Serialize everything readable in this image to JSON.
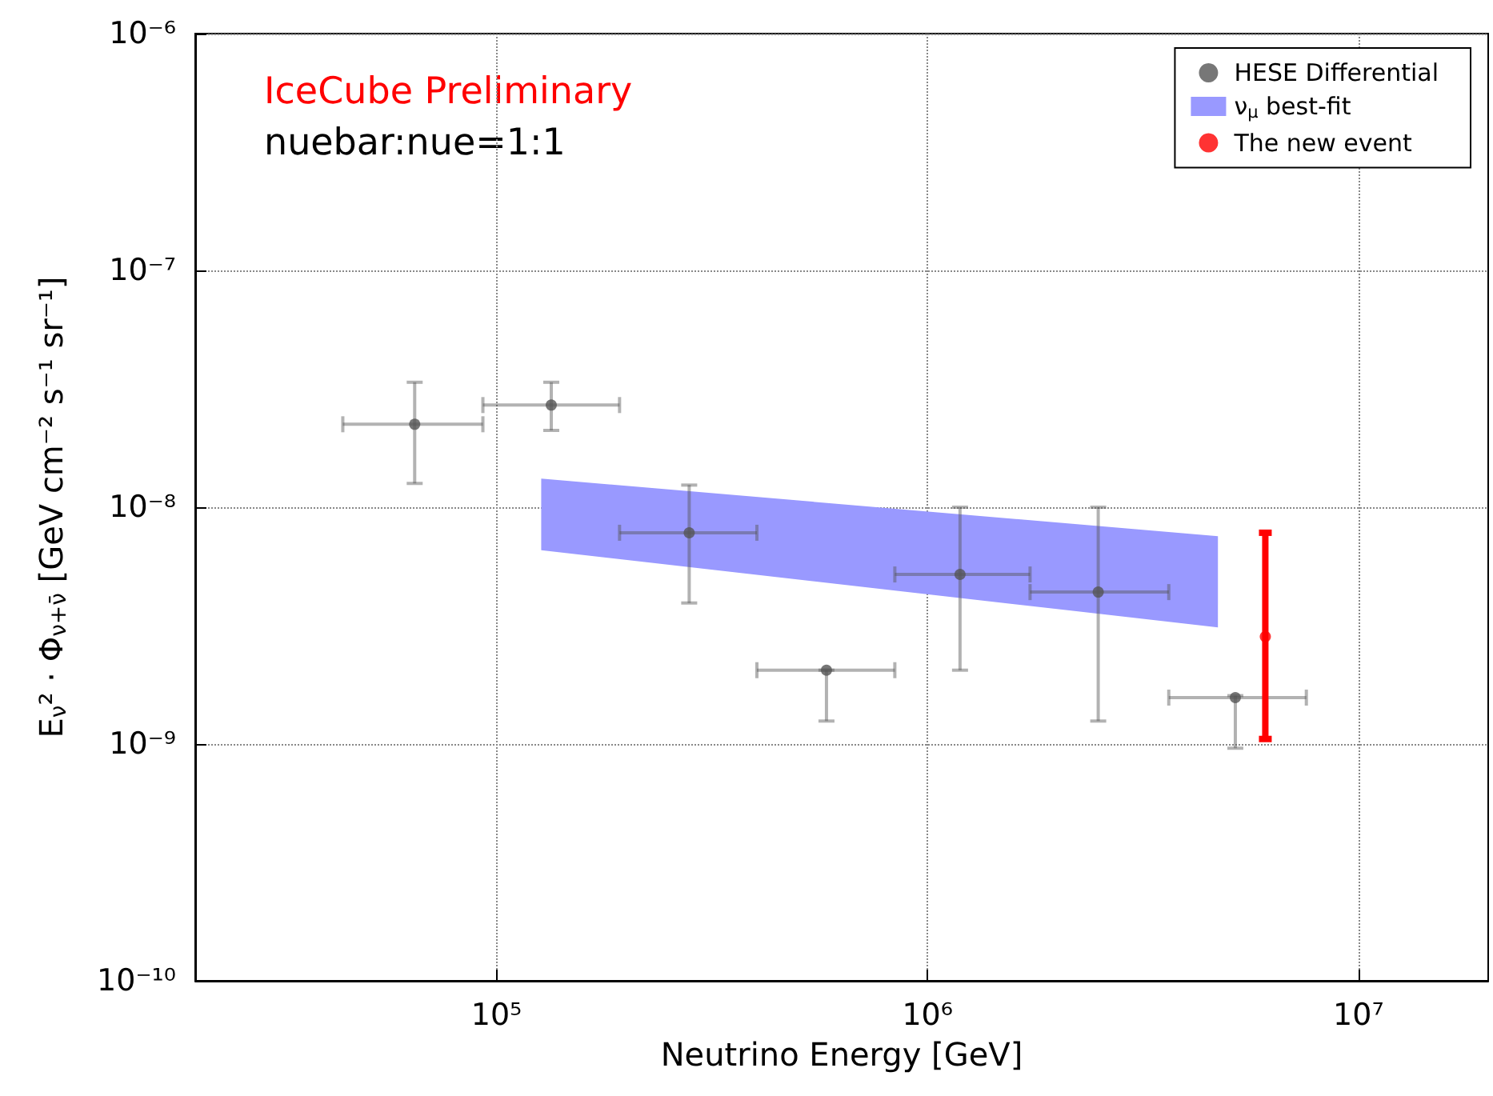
{
  "chart_data": {
    "type": "scatter",
    "xlabel": "Neutrino Energy [GeV]",
    "ylabel": "E$_{ν}$² · Φ$_{ν+ν̄}$ [GeV cm⁻² s⁻¹ sr⁻¹]",
    "annotations": [
      "IceCube Preliminary",
      "nuebar:nue=1:1"
    ],
    "log": "xy",
    "grid": true,
    "legend": "top right",
    "marker": "circle",
    "xlim": [
      20000,
      20000000
    ],
    "xticks": [
      {
        "value": 100000,
        "label": "10⁵"
      },
      {
        "value": 1000000,
        "label": "10⁶"
      },
      {
        "value": 10000000,
        "label": "10⁷"
      }
    ],
    "ylim": [
      1e-10,
      1e-06
    ],
    "yticks": [
      {
        "value": 1e-10,
        "label": "10⁻¹⁰"
      },
      {
        "value": 1e-09,
        "label": "10⁻⁹"
      },
      {
        "value": 1e-08,
        "label": "10⁻⁸"
      },
      {
        "value": 1e-07,
        "label": "10⁻⁷"
      },
      {
        "value": 1e-06,
        "label": "10⁻⁶"
      }
    ],
    "series": [
      {
        "name": "HESE Differential",
        "color": "#555555",
        "x": [
          64600,
          134000,
          280000,
          583000,
          1190000,
          2490000,
          5180000
        ],
        "values": [
          2.24e-08,
          2.7e-08,
          7.8e-09,
          2.05e-09,
          5.2e-09,
          4.38e-09,
          1.57e-09
        ],
        "xerrors": [
          [
            44000,
            93000
          ],
          [
            93000,
            193000
          ],
          [
            193000,
            402000
          ],
          [
            402000,
            840000
          ],
          [
            840000,
            1730000
          ],
          [
            1730000,
            3630000
          ],
          [
            3630000,
            7570000
          ]
        ],
        "errors": [
          [
            1.26e-08,
            3.37e-08
          ],
          [
            2.11e-08,
            3.37e-08
          ],
          [
            3.94e-09,
            1.24e-08
          ],
          [
            1.25e-09,
            2.05e-09
          ],
          [
            2.05e-09,
            1e-08
          ],
          [
            1.25e-09,
            1e-08
          ],
          [
            9.6e-10,
            1.6e-09
          ]
        ]
      },
      {
        "name": "ν$_{μ}$ best-fit",
        "type": "area",
        "color": "#9999ff",
        "x": [
          127000,
          4720000
        ],
        "values": [
          null,
          null
        ],
        "lower": [
          6.58e-09,
          3.11e-09
        ],
        "upper": [
          1.32e-08,
          7.55e-09
        ]
      },
      {
        "name": "The new event",
        "color": "#ff0000",
        "x": [
          6080000
        ],
        "values": [
          2.84e-09
        ],
        "errors": [
          [
            1.05e-09,
            7.8e-09
          ]
        ]
      }
    ]
  }
}
